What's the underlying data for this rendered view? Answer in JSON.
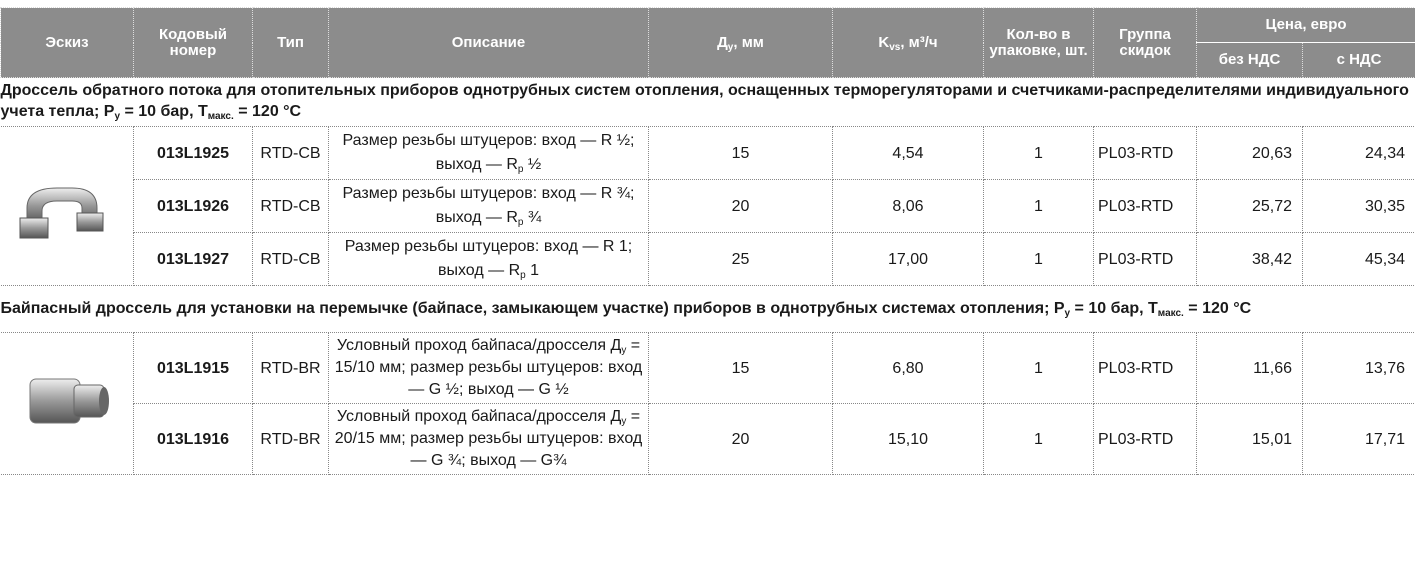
{
  "header": {
    "sketch": "Эскиз",
    "code": "Кодовый номер",
    "type": "Тип",
    "description": "Описание",
    "dn": [
      "Д",
      "у",
      ", мм"
    ],
    "kvs": [
      "K",
      "vs",
      ", м³/ч"
    ],
    "pack": "Кол-во в упаковке, шт.",
    "group": "Группа скидок",
    "price": "Цена, евро",
    "no_vat": "без НДС",
    "vat": "с НДС"
  },
  "sections": [
    {
      "title": [
        "Дроссель обратного потока для отопительных приборов однотрубных систем отопления, оснащенных терморегуляторами и счетчиками-распределителями индивидуального учета тепла; P",
        "у",
        " = 10 бар, T",
        "макс.",
        " = 120 °C"
      ],
      "rows": [
        {
          "code": "013L1925",
          "type": "RTD-CB",
          "description": [
            "Размер резьбы штуцеров: вход — R ½; выход — R",
            "р",
            " ½"
          ],
          "dn": "15",
          "kvs": "4,54",
          "pack": "1",
          "group": "PL03-RTD",
          "no_vat": "20,63",
          "vat": "24,34"
        },
        {
          "code": "013L1926",
          "type": "RTD-CB",
          "description": [
            "Размер резьбы штуцеров: вход — R ¾; выход — R",
            "р",
            " ¾"
          ],
          "dn": "20",
          "kvs": "8,06",
          "pack": "1",
          "group": "PL03-RTD",
          "no_vat": "25,72",
          "vat": "30,35"
        },
        {
          "code": "013L1927",
          "type": "RTD-CB",
          "description": [
            "Размер резьбы штуцеров: вход — R 1; выход — R",
            "р",
            " 1"
          ],
          "dn": "25",
          "kvs": "17,00",
          "pack": "1",
          "group": "PL03-RTD",
          "no_vat": "38,42",
          "vat": "45,34"
        }
      ]
    },
    {
      "title": [
        "Байпасный дроссель для установки на перемычке (байпасе, замыкающем участке) приборов в однотрубных системах отопления; P",
        "у",
        " = 10 бар, T",
        "макс.",
        " = 120 °C"
      ],
      "rows": [
        {
          "code": "013L1915",
          "type": "RTD-BR",
          "description": [
            "Условный проход байпаса/дросселя Д",
            "у",
            " = 15/10 мм; размер резьбы штуцеров:  вход — G ½; выход — G ½"
          ],
          "dn": "15",
          "kvs": "6,80",
          "pack": "1",
          "group": "PL03-RTD",
          "no_vat": "11,66",
          "vat": "13,76"
        },
        {
          "code": "013L1916",
          "type": "RTD-BR",
          "description": [
            "Условный проход байпаса/дросселя Д",
            "у",
            " = 20/15 мм; размер резьбы штуцеров:  вход — G ¾; выход — G¾"
          ],
          "dn": "20",
          "kvs": "15,10",
          "pack": "1",
          "group": "PL03-RTD",
          "no_vat": "15,01",
          "vat": "17,71"
        }
      ]
    }
  ]
}
